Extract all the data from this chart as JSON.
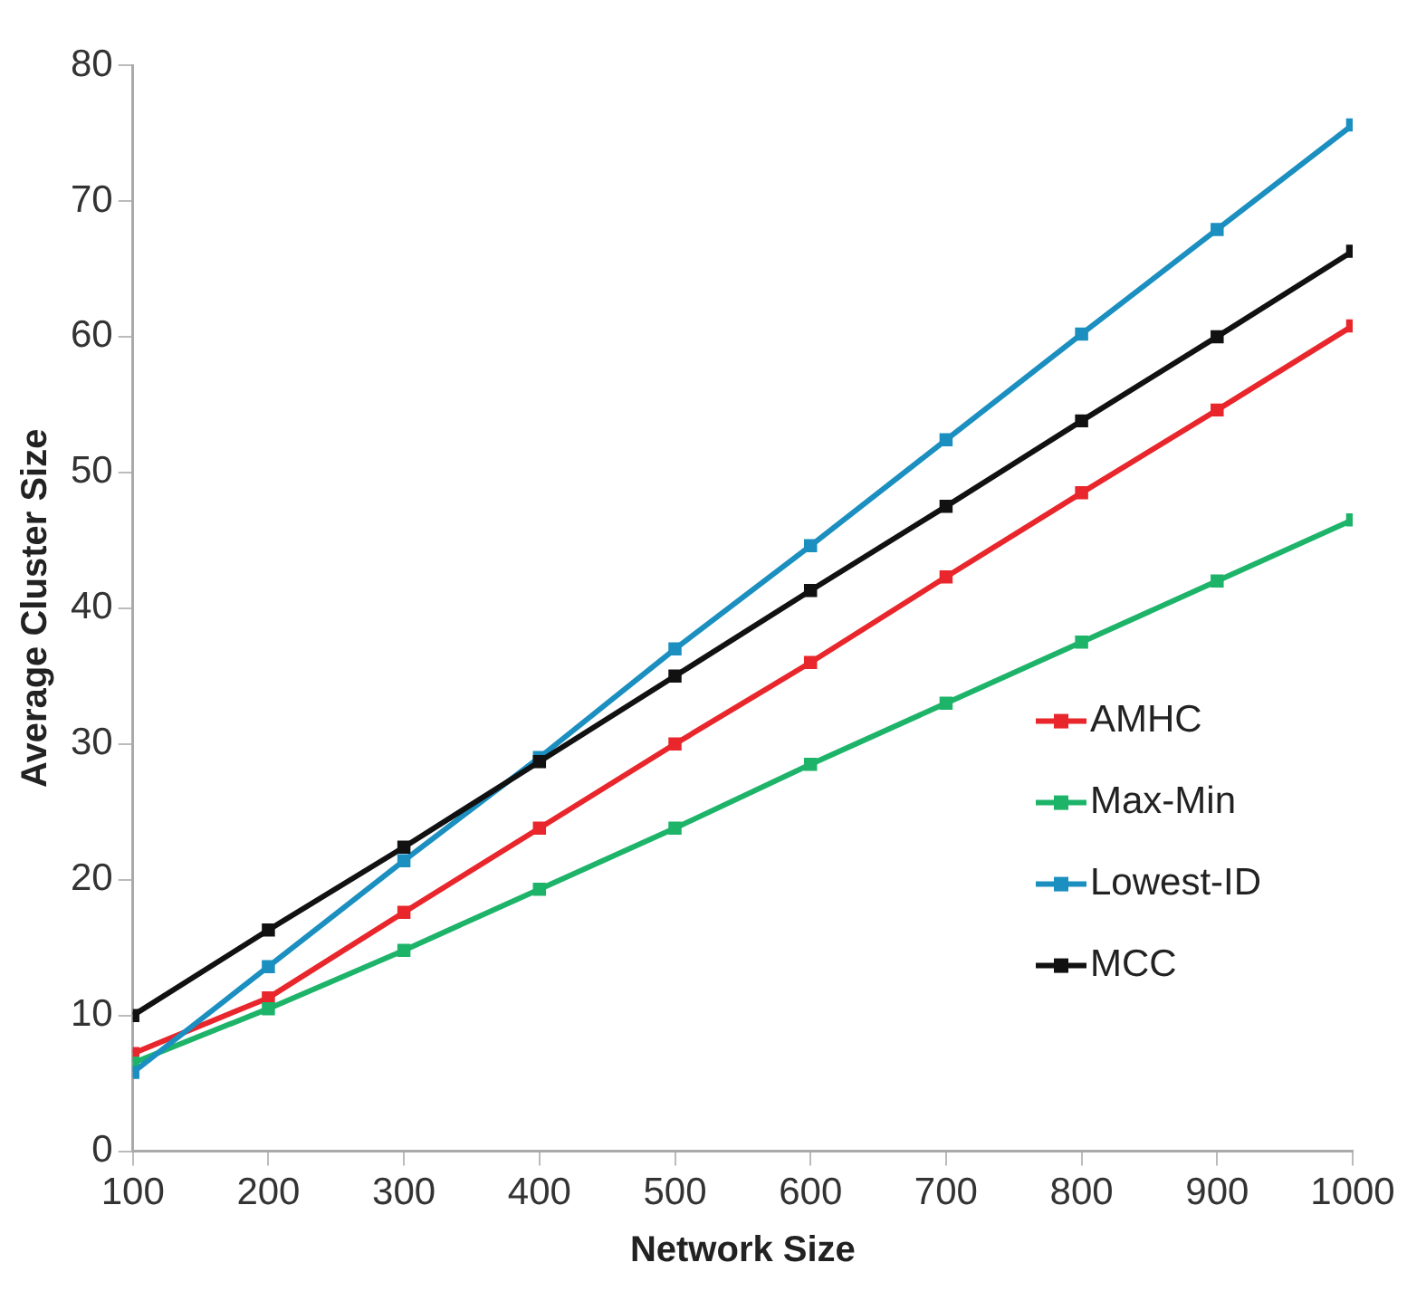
{
  "chart_data": {
    "type": "line",
    "xlabel": "Network Size",
    "ylabel": "Average Cluster Size",
    "x": [
      100,
      200,
      300,
      400,
      500,
      600,
      700,
      800,
      900,
      1000
    ],
    "series": [
      {
        "name": "AMHC",
        "color": "#e8262b",
        "values": [
          7.2,
          11.3,
          17.6,
          23.8,
          30,
          36,
          42.3,
          48.5,
          54.6,
          60.8
        ]
      },
      {
        "name": "Max-Min",
        "color": "#1db46a",
        "values": [
          6.5,
          10.5,
          14.8,
          19.3,
          23.8,
          28.5,
          33,
          37.5,
          42,
          46.5
        ]
      },
      {
        "name": "Lowest-ID",
        "color": "#1a8fc0",
        "values": [
          5.8,
          13.6,
          21.4,
          29,
          37,
          44.6,
          52.4,
          60.2,
          67.9,
          75.6
        ]
      },
      {
        "name": "MCC",
        "color": "#111111",
        "values": [
          10,
          16.3,
          22.4,
          28.7,
          35,
          41.3,
          47.5,
          53.8,
          60,
          66.3
        ]
      }
    ],
    "xlim": [
      100,
      1000
    ],
    "xticks": [
      100,
      200,
      300,
      400,
      500,
      600,
      700,
      800,
      900,
      1000
    ],
    "ylim": [
      0,
      80
    ],
    "yticks": [
      0,
      10,
      20,
      30,
      40,
      50,
      60,
      70,
      80
    ],
    "grid": false,
    "legend": "bottom right",
    "marker": "square",
    "line_style": "solid"
  }
}
